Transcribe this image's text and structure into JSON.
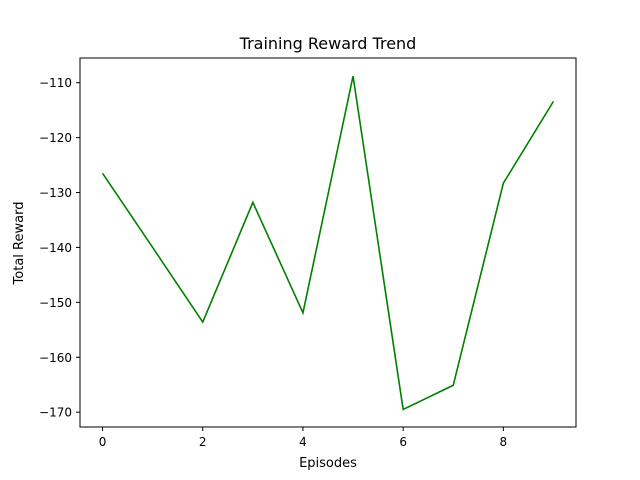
{
  "chart_data": {
    "type": "line",
    "title": "Training Reward Trend",
    "xlabel": "Episodes",
    "ylabel": "Total Reward",
    "xlim": [
      -0.45,
      9.45
    ],
    "ylim": [
      -172.7,
      -105.5
    ],
    "xticks": [
      0,
      2,
      4,
      6,
      8
    ],
    "yticks": [
      -110,
      -120,
      -130,
      -140,
      -150,
      -160,
      -170
    ],
    "grid": false,
    "series": [
      {
        "color": "#008000",
        "x": [
          0,
          1,
          2,
          3,
          4,
          5,
          6,
          7,
          8,
          9
        ],
        "y": [
          -126.5,
          -140.0,
          -153.6,
          -131.8,
          -151.9,
          -108.8,
          -169.5,
          -165.1,
          -128.3,
          -113.4
        ]
      }
    ]
  }
}
